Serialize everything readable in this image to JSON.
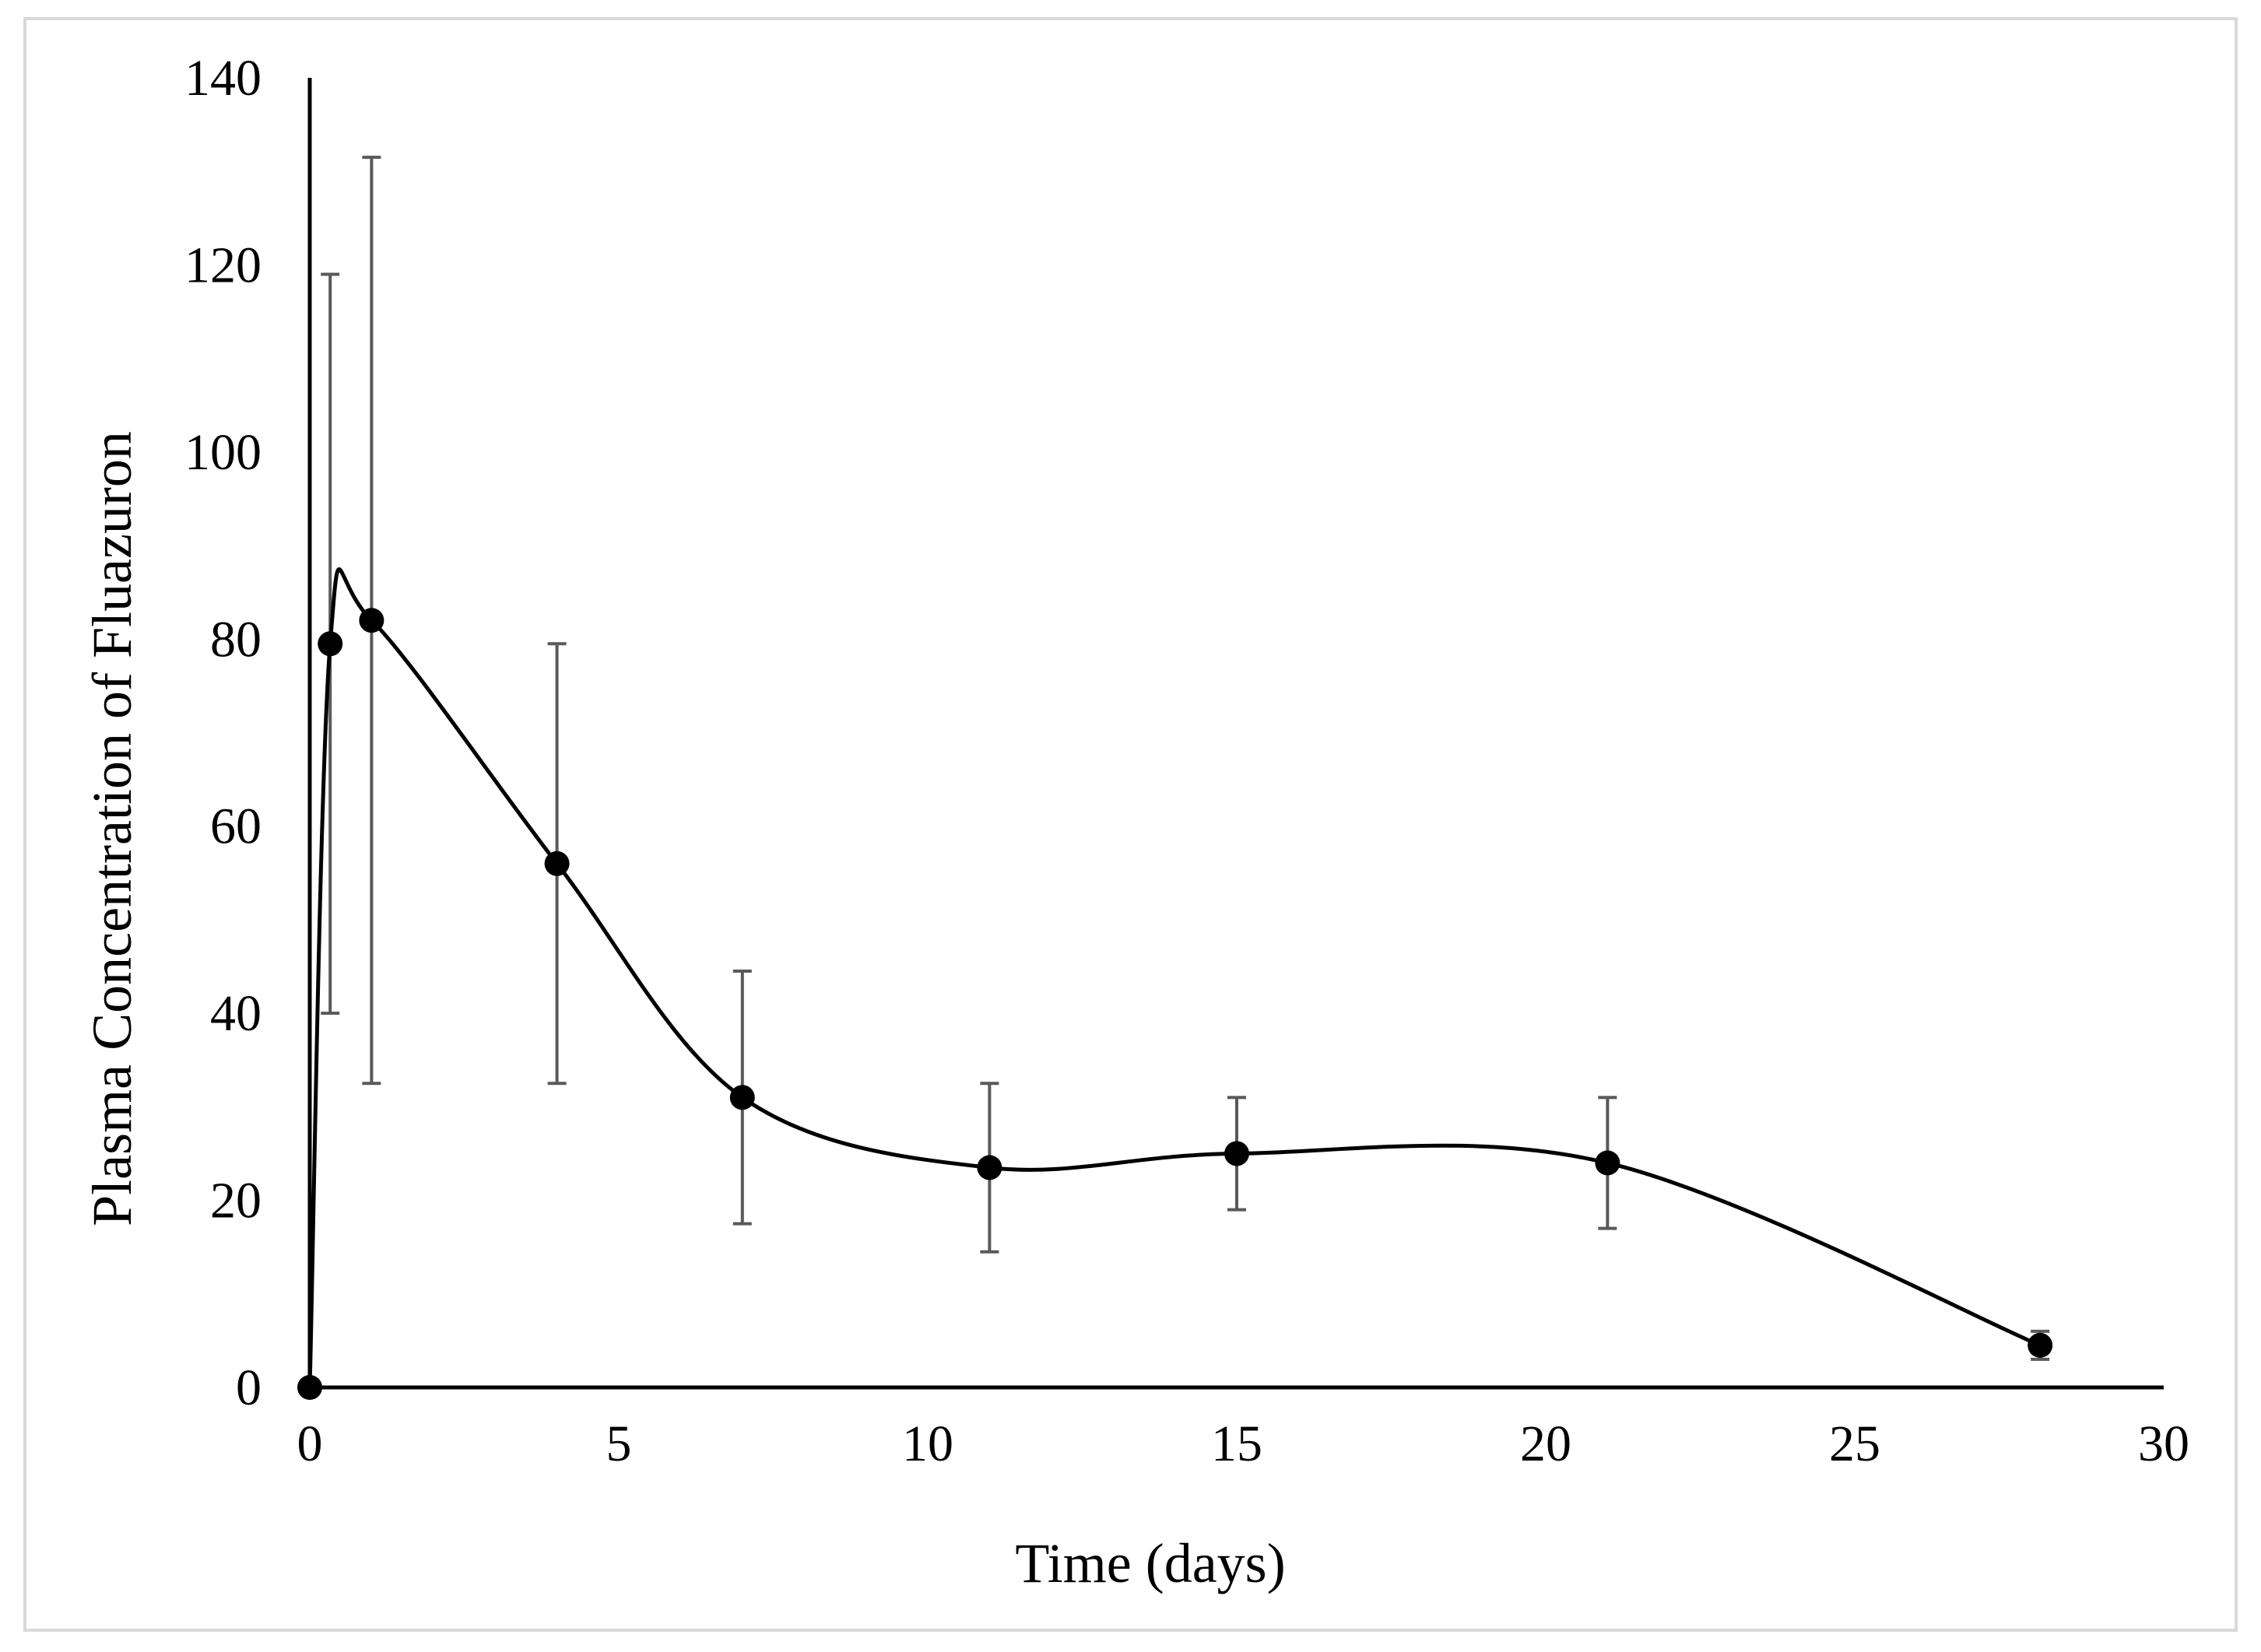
{
  "chart_data": {
    "type": "line",
    "title": "",
    "xlabel": "Time (days)",
    "ylabel": "Plasma Concentration of Fluazuron",
    "xlim": [
      0,
      30
    ],
    "ylim": [
      0,
      140
    ],
    "xticks": [
      "0",
      "5",
      "10",
      "15",
      "20",
      "25",
      "30"
    ],
    "yticks": [
      "0",
      "20",
      "40",
      "60",
      "80",
      "100",
      "120",
      "140"
    ],
    "grid": false,
    "legend": "none",
    "series": [
      {
        "name": "Fluazuron",
        "line": "smoothed",
        "marker": "filled-circle",
        "x": [
          0,
          0.33,
          1,
          4,
          7,
          11,
          15,
          21,
          28
        ],
        "y": [
          0,
          79.5,
          82,
          56,
          31,
          23.5,
          25,
          24,
          4.5
        ],
        "error": [
          0,
          39.5,
          49.5,
          23.5,
          13.5,
          9,
          6,
          7,
          1.5
        ]
      }
    ]
  },
  "colors": {
    "line": "#000000",
    "marker": "#000000",
    "error_bar": "#595959",
    "axis": "#000000",
    "frame": "#d9d9d9"
  }
}
